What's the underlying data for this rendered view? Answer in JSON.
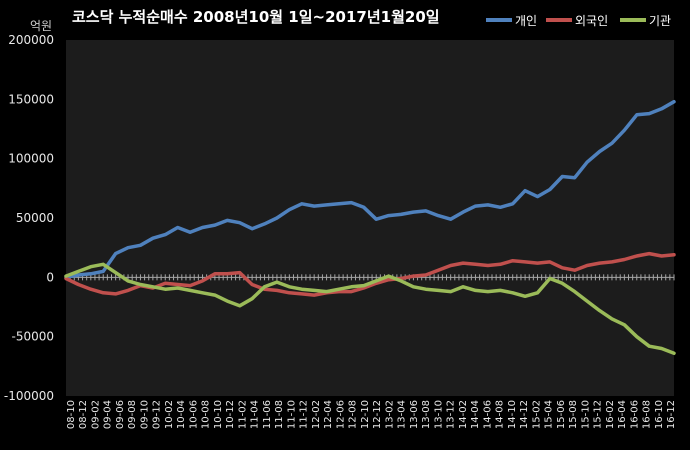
{
  "chart_data": {
    "type": "line",
    "title": "코스닥 누적순매수 2008년10월 1일~2017년1월20일",
    "unit_label": "억원",
    "ylim": [
      -100000,
      200000
    ],
    "y_ticks": [
      200000,
      150000,
      100000,
      50000,
      0,
      -50000,
      -100000
    ],
    "x_tick_labels": [
      "08-10",
      "08-12",
      "09-02",
      "09-04",
      "09-06",
      "09-08",
      "09-10",
      "09-12",
      "10-02",
      "10-04",
      "10-06",
      "10-08",
      "10-10",
      "10-12",
      "11-02",
      "11-04",
      "11-06",
      "11-08",
      "11-10",
      "11-12",
      "12-02",
      "12-04",
      "12-06",
      "12-08",
      "12-10",
      "12-12",
      "13-02",
      "13-04",
      "13-06",
      "13-08",
      "13-10",
      "13-12",
      "14-02",
      "14-04",
      "14-06",
      "14-08",
      "14-10",
      "14-12",
      "15-02",
      "15-04",
      "15-06",
      "15-08",
      "15-10",
      "15-12",
      "16-02",
      "16-04",
      "16-06",
      "16-08",
      "16-10",
      "16-12"
    ],
    "grid": false,
    "legend_position": "top-right",
    "series": [
      {
        "name": "개인",
        "color": "#4f81bd",
        "values": [
          0,
          2000,
          3000,
          5000,
          20000,
          25000,
          27000,
          33000,
          36000,
          42000,
          38000,
          42000,
          44000,
          48000,
          46000,
          41000,
          45000,
          50000,
          57000,
          62000,
          60000,
          61000,
          62000,
          63000,
          59000,
          49000,
          52000,
          53000,
          55000,
          56000,
          52000,
          49000,
          55000,
          60000,
          61000,
          59000,
          62000,
          73000,
          68000,
          74000,
          85000,
          84000,
          97000,
          106000,
          113000,
          124000,
          137000,
          138000,
          142000,
          148000
        ]
      },
      {
        "name": "외국인",
        "color": "#c0504d",
        "values": [
          -1000,
          -6000,
          -10000,
          -13000,
          -14000,
          -11000,
          -7000,
          -9000,
          -5000,
          -6000,
          -7000,
          -3000,
          3000,
          3000,
          4000,
          -6000,
          -10000,
          -11000,
          -13000,
          -14000,
          -15000,
          -13000,
          -12000,
          -12000,
          -9000,
          -5000,
          -2000,
          -1000,
          1000,
          2000,
          6000,
          10000,
          12000,
          11000,
          10000,
          11000,
          14000,
          13000,
          12000,
          13000,
          8000,
          6000,
          10000,
          12000,
          13000,
          15000,
          18000,
          20000,
          18000,
          19000
        ]
      },
      {
        "name": "기관",
        "color": "#9bbb59",
        "values": [
          1000,
          5000,
          9000,
          11000,
          4000,
          -3000,
          -6000,
          -8000,
          -10000,
          -9000,
          -11000,
          -13000,
          -15000,
          -20000,
          -24000,
          -18000,
          -8000,
          -4000,
          -8000,
          -10000,
          -11000,
          -12000,
          -10000,
          -8000,
          -7000,
          -3000,
          1000,
          -3000,
          -8000,
          -10000,
          -11000,
          -12000,
          -8000,
          -11000,
          -12000,
          -11000,
          -13000,
          -16000,
          -13000,
          -1000,
          -5000,
          -12000,
          -20000,
          -28000,
          -35000,
          -40000,
          -50000,
          -58000,
          -60000,
          -64000
        ]
      }
    ]
  }
}
